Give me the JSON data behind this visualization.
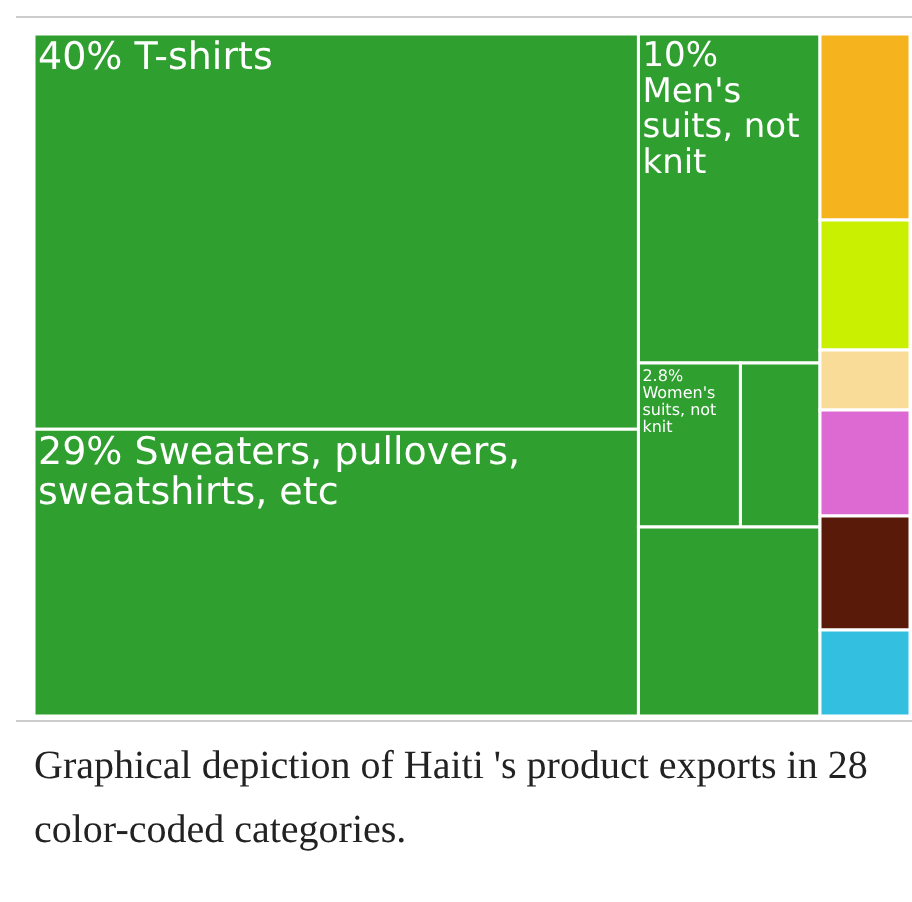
{
  "chart_data": {
    "type": "other",
    "categories": [
      "T-shirts",
      "Sweaters, pullovers, sweatshirts, etc",
      "Men's suits, not knit",
      "Women's suits, not knit",
      null,
      null,
      null,
      null,
      null,
      null,
      null,
      null
    ],
    "values": [
      40,
      29,
      10,
      2.8,
      null,
      null,
      null,
      null,
      null,
      null,
      null,
      null
    ],
    "value_labels": [
      "40%",
      "29%",
      "10%",
      "2.8%",
      null,
      null,
      null,
      null,
      null,
      null,
      null,
      null
    ],
    "colors": [
      "#2f9f2f",
      "#2f9f2f",
      "#2f9f2f",
      "#2f9f2f",
      "#2f9f2f",
      "#2f9f2f",
      "#f5b31e",
      "#c9f000",
      "#f8dc98",
      "#dc6ad2",
      "#5a1a0a",
      "#33c0e0"
    ],
    "annotations": [
      "Graphical depiction of Haiti 's product exports in 28 color-coded categories."
    ]
  }
}
